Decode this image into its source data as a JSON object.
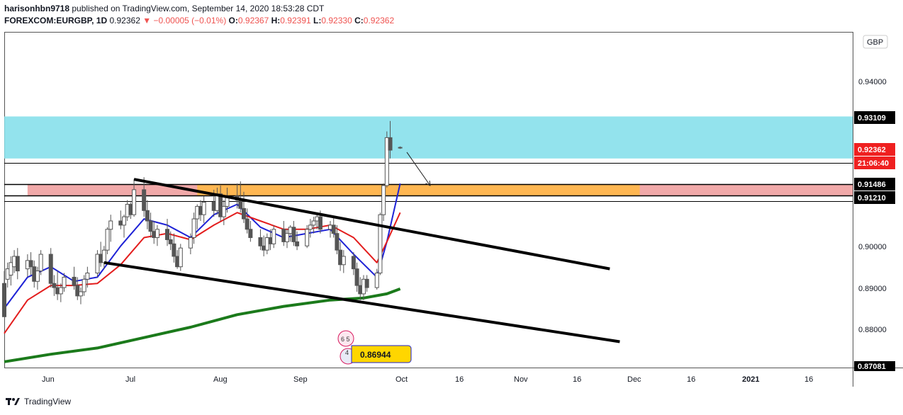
{
  "header": {
    "user": "harisonhbn9718",
    "published": "published on TradingView.com, September 14, 2020 18:53:28 CDT",
    "symbol": "FOREXCOM:EURGBP, 1D",
    "last": "0.92362",
    "change": "−0.00005 (−0.01%)",
    "o_label": "O:",
    "o_value": "0.92367",
    "h_label": "H:",
    "h_value": "0.92391",
    "l_label": "L:",
    "l_value": "0.92330",
    "c_label": "C:",
    "c_value": "0.92362",
    "down_arrow": "▼"
  },
  "price_axis": {
    "currency": "GBP",
    "ticks": [
      "0.94000",
      "0.90000",
      "0.89000",
      "0.88000"
    ],
    "marker_top": "0.93109",
    "marker_price": "0.92362",
    "marker_countdown": "21:06:40",
    "marker_level_1": "0.91486",
    "marker_level_2": "0.91210",
    "marker_bottom": "0.87081"
  },
  "time_axis": {
    "labels": [
      "Jun",
      "Jul",
      "Aug",
      "Sep",
      "Oct",
      "16",
      "Nov",
      "16",
      "Dec",
      "16",
      "2021",
      "16"
    ]
  },
  "chart_labels": {
    "price_bubble": "0.86944",
    "event_1": "6 5",
    "event_2": "4"
  },
  "footer": {
    "brand": "TradingView"
  },
  "colors": {
    "up": "#26a69a",
    "down": "#ef5350",
    "candle": "#555555",
    "supply_zone": "#80deea",
    "demand_zone": "#ef9a9a",
    "overlap_zone": "#ffb74d",
    "ma_fast": "#1e22d6",
    "ma_mid": "#e31d1d",
    "ma_slow": "#1b7a1b"
  },
  "chart_data": {
    "type": "candlestick",
    "symbol": "FOREXCOM:EURGBP",
    "interval": "1D",
    "ylim": [
      0.8708,
      0.9514
    ],
    "x_range": [
      "2020-05-18",
      "2021-01-28"
    ],
    "candles": [
      {
        "d": "2020-05-18",
        "o": 0.891,
        "h": 0.894,
        "l": 0.883,
        "c": 0.883
      },
      {
        "d": "2020-05-19",
        "o": 0.892,
        "h": 0.896,
        "l": 0.89,
        "c": 0.8945
      },
      {
        "d": "2020-05-20",
        "o": 0.893,
        "h": 0.8975,
        "l": 0.8905,
        "c": 0.896
      },
      {
        "d": "2020-05-21",
        "o": 0.895,
        "h": 0.899,
        "l": 0.8935,
        "c": 0.8975
      },
      {
        "d": "2020-05-22",
        "o": 0.8975,
        "h": 0.8995,
        "l": 0.892,
        "c": 0.894
      },
      {
        "d": "2020-05-25",
        "o": 0.8945,
        "h": 0.898,
        "l": 0.8925,
        "c": 0.8965
      },
      {
        "d": "2020-05-26",
        "o": 0.8965,
        "h": 0.8985,
        "l": 0.893,
        "c": 0.895
      },
      {
        "d": "2020-05-27",
        "o": 0.895,
        "h": 0.8965,
        "l": 0.89,
        "c": 0.8915
      },
      {
        "d": "2020-05-28",
        "o": 0.8915,
        "h": 0.895,
        "l": 0.8895,
        "c": 0.894
      },
      {
        "d": "2020-05-29",
        "o": 0.894,
        "h": 0.899,
        "l": 0.893,
        "c": 0.898
      },
      {
        "d": "2020-06-01",
        "o": 0.898,
        "h": 0.8995,
        "l": 0.89,
        "c": 0.891
      },
      {
        "d": "2020-06-02",
        "o": 0.891,
        "h": 0.893,
        "l": 0.888,
        "c": 0.89
      },
      {
        "d": "2020-06-03",
        "o": 0.89,
        "h": 0.894,
        "l": 0.887,
        "c": 0.8885
      },
      {
        "d": "2020-06-04",
        "o": 0.8885,
        "h": 0.891,
        "l": 0.8865,
        "c": 0.89
      },
      {
        "d": "2020-06-05",
        "o": 0.89,
        "h": 0.8935,
        "l": 0.889,
        "c": 0.8925
      },
      {
        "d": "2020-06-08",
        "o": 0.8925,
        "h": 0.895,
        "l": 0.8895,
        "c": 0.8905
      },
      {
        "d": "2020-06-09",
        "o": 0.8905,
        "h": 0.8925,
        "l": 0.887,
        "c": 0.888
      },
      {
        "d": "2020-06-10",
        "o": 0.888,
        "h": 0.89,
        "l": 0.886,
        "c": 0.889
      },
      {
        "d": "2020-06-11",
        "o": 0.889,
        "h": 0.893,
        "l": 0.888,
        "c": 0.892
      },
      {
        "d": "2020-06-12",
        "o": 0.892,
        "h": 0.895,
        "l": 0.89,
        "c": 0.8935
      },
      {
        "d": "2020-06-15",
        "o": 0.8935,
        "h": 0.899,
        "l": 0.8925,
        "c": 0.898
      },
      {
        "d": "2020-06-16",
        "o": 0.898,
        "h": 0.901,
        "l": 0.895,
        "c": 0.896
      },
      {
        "d": "2020-06-17",
        "o": 0.896,
        "h": 0.9,
        "l": 0.8945,
        "c": 0.899
      },
      {
        "d": "2020-06-18",
        "o": 0.899,
        "h": 0.9045,
        "l": 0.898,
        "c": 0.904
      },
      {
        "d": "2020-06-19",
        "o": 0.904,
        "h": 0.9075,
        "l": 0.901,
        "c": 0.906
      },
      {
        "d": "2020-06-22",
        "o": 0.906,
        "h": 0.9085,
        "l": 0.904,
        "c": 0.905
      },
      {
        "d": "2020-06-23",
        "o": 0.905,
        "h": 0.9075,
        "l": 0.902,
        "c": 0.907
      },
      {
        "d": "2020-06-24",
        "o": 0.907,
        "h": 0.911,
        "l": 0.906,
        "c": 0.91
      },
      {
        "d": "2020-06-25",
        "o": 0.91,
        "h": 0.9105,
        "l": 0.9065,
        "c": 0.9075
      },
      {
        "d": "2020-06-26",
        "o": 0.9075,
        "h": 0.916,
        "l": 0.907,
        "c": 0.9135
      },
      {
        "d": "2020-06-29",
        "o": 0.9135,
        "h": 0.9165,
        "l": 0.907,
        "c": 0.9085
      },
      {
        "d": "2020-06-30",
        "o": 0.9085,
        "h": 0.911,
        "l": 0.904,
        "c": 0.906
      },
      {
        "d": "2020-07-01",
        "o": 0.906,
        "h": 0.908,
        "l": 0.902,
        "c": 0.9035
      },
      {
        "d": "2020-07-02",
        "o": 0.9035,
        "h": 0.906,
        "l": 0.9005,
        "c": 0.902
      },
      {
        "d": "2020-07-03",
        "o": 0.902,
        "h": 0.905,
        "l": 0.9,
        "c": 0.904
      },
      {
        "d": "2020-07-06",
        "o": 0.904,
        "h": 0.9065,
        "l": 0.9,
        "c": 0.9015
      },
      {
        "d": "2020-07-07",
        "o": 0.9015,
        "h": 0.9035,
        "l": 0.899,
        "c": 0.9005
      },
      {
        "d": "2020-07-08",
        "o": 0.9005,
        "h": 0.903,
        "l": 0.896,
        "c": 0.8975
      },
      {
        "d": "2020-07-09",
        "o": 0.8975,
        "h": 0.899,
        "l": 0.8945,
        "c": 0.895
      },
      {
        "d": "2020-07-10",
        "o": 0.895,
        "h": 0.9005,
        "l": 0.894,
        "c": 0.8995
      },
      {
        "d": "2020-07-13",
        "o": 0.8995,
        "h": 0.903,
        "l": 0.898,
        "c": 0.902
      },
      {
        "d": "2020-07-14",
        "o": 0.902,
        "h": 0.908,
        "l": 0.9005,
        "c": 0.9065
      },
      {
        "d": "2020-07-15",
        "o": 0.9065,
        "h": 0.91,
        "l": 0.904,
        "c": 0.9095
      },
      {
        "d": "2020-07-16",
        "o": 0.9095,
        "h": 0.911,
        "l": 0.906,
        "c": 0.9075
      },
      {
        "d": "2020-07-17",
        "o": 0.9075,
        "h": 0.912,
        "l": 0.9055,
        "c": 0.9105
      },
      {
        "d": "2020-07-20",
        "o": 0.9105,
        "h": 0.9135,
        "l": 0.907,
        "c": 0.9085
      },
      {
        "d": "2020-07-21",
        "o": 0.9085,
        "h": 0.914,
        "l": 0.9075,
        "c": 0.9125
      },
      {
        "d": "2020-07-22",
        "o": 0.9125,
        "h": 0.9145,
        "l": 0.906,
        "c": 0.907
      },
      {
        "d": "2020-07-23",
        "o": 0.907,
        "h": 0.911,
        "l": 0.905,
        "c": 0.9095
      },
      {
        "d": "2020-07-24",
        "o": 0.9095,
        "h": 0.914,
        "l": 0.908,
        "c": 0.912
      },
      {
        "d": "2020-07-27",
        "o": 0.912,
        "h": 0.915,
        "l": 0.909,
        "c": 0.911
      },
      {
        "d": "2020-07-28",
        "o": 0.911,
        "h": 0.9155,
        "l": 0.908,
        "c": 0.909
      },
      {
        "d": "2020-07-29",
        "o": 0.909,
        "h": 0.913,
        "l": 0.9055,
        "c": 0.9065
      },
      {
        "d": "2020-07-30",
        "o": 0.9065,
        "h": 0.909,
        "l": 0.903,
        "c": 0.904
      },
      {
        "d": "2020-07-31",
        "o": 0.904,
        "h": 0.906,
        "l": 0.901,
        "c": 0.902
      },
      {
        "d": "2020-08-03",
        "o": 0.902,
        "h": 0.904,
        "l": 0.899,
        "c": 0.9
      },
      {
        "d": "2020-08-04",
        "o": 0.9,
        "h": 0.9025,
        "l": 0.8975,
        "c": 0.899
      },
      {
        "d": "2020-08-05",
        "o": 0.899,
        "h": 0.903,
        "l": 0.898,
        "c": 0.902
      },
      {
        "d": "2020-08-06",
        "o": 0.902,
        "h": 0.904,
        "l": 0.899,
        "c": 0.9005
      },
      {
        "d": "2020-08-07",
        "o": 0.9005,
        "h": 0.905,
        "l": 0.8995,
        "c": 0.904
      },
      {
        "d": "2020-08-10",
        "o": 0.904,
        "h": 0.906,
        "l": 0.9,
        "c": 0.901
      },
      {
        "d": "2020-08-11",
        "o": 0.901,
        "h": 0.904,
        "l": 0.8995,
        "c": 0.903
      },
      {
        "d": "2020-08-12",
        "o": 0.903,
        "h": 0.905,
        "l": 0.901,
        "c": 0.9045
      },
      {
        "d": "2020-08-13",
        "o": 0.9045,
        "h": 0.906,
        "l": 0.9,
        "c": 0.901
      },
      {
        "d": "2020-08-14",
        "o": 0.901,
        "h": 0.9035,
        "l": 0.899,
        "c": 0.9
      },
      {
        "d": "2020-08-17",
        "o": 0.9,
        "h": 0.905,
        "l": 0.8995,
        "c": 0.904
      },
      {
        "d": "2020-08-18",
        "o": 0.904,
        "h": 0.9065,
        "l": 0.902,
        "c": 0.905
      },
      {
        "d": "2020-08-19",
        "o": 0.905,
        "h": 0.907,
        "l": 0.903,
        "c": 0.906
      },
      {
        "d": "2020-08-20",
        "o": 0.906,
        "h": 0.908,
        "l": 0.904,
        "c": 0.907
      },
      {
        "d": "2020-08-21",
        "o": 0.907,
        "h": 0.9085,
        "l": 0.903,
        "c": 0.904
      },
      {
        "d": "2020-08-24",
        "o": 0.904,
        "h": 0.906,
        "l": 0.902,
        "c": 0.905
      },
      {
        "d": "2020-08-25",
        "o": 0.905,
        "h": 0.907,
        "l": 0.902,
        "c": 0.903
      },
      {
        "d": "2020-08-26",
        "o": 0.903,
        "h": 0.905,
        "l": 0.898,
        "c": 0.899
      },
      {
        "d": "2020-08-27",
        "o": 0.899,
        "h": 0.901,
        "l": 0.894,
        "c": 0.8955
      },
      {
        "d": "2020-08-28",
        "o": 0.8955,
        "h": 0.899,
        "l": 0.8935,
        "c": 0.8975
      },
      {
        "d": "2020-08-31",
        "o": 0.8975,
        "h": 0.8985,
        "l": 0.893,
        "c": 0.8945
      },
      {
        "d": "2020-09-01",
        "o": 0.8945,
        "h": 0.896,
        "l": 0.889,
        "c": 0.8905
      },
      {
        "d": "2020-09-02",
        "o": 0.8905,
        "h": 0.8925,
        "l": 0.887,
        "c": 0.8885
      },
      {
        "d": "2020-09-03",
        "o": 0.8885,
        "h": 0.893,
        "l": 0.887,
        "c": 0.892
      },
      {
        "d": "2020-09-04",
        "o": 0.892,
        "h": 0.893,
        "l": 0.889,
        "c": 0.89
      },
      {
        "d": "2020-09-07",
        "o": 0.89,
        "h": 0.8945,
        "l": 0.8895,
        "c": 0.8935
      },
      {
        "d": "2020-09-08",
        "o": 0.8935,
        "h": 0.908,
        "l": 0.893,
        "c": 0.9075
      },
      {
        "d": "2020-09-09",
        "o": 0.9075,
        "h": 0.915,
        "l": 0.906,
        "c": 0.9145
      },
      {
        "d": "2020-09-10",
        "o": 0.9145,
        "h": 0.9275,
        "l": 0.914,
        "c": 0.926
      },
      {
        "d": "2020-09-11",
        "o": 0.926,
        "h": 0.93,
        "l": 0.921,
        "c": 0.923
      },
      {
        "d": "2020-09-14",
        "o": 0.92367,
        "h": 0.92391,
        "l": 0.9233,
        "c": 0.92362
      }
    ],
    "moving_averages": [
      {
        "name": "MA fast",
        "color": "#1e22d6",
        "points": [
          [
            "2020-05-18",
            0.885
          ],
          [
            "2020-05-25",
            0.8925
          ],
          [
            "2020-06-01",
            0.895
          ],
          [
            "2020-06-08",
            0.8915
          ],
          [
            "2020-06-15",
            0.8925
          ],
          [
            "2020-06-22",
            0.9
          ],
          [
            "2020-06-29",
            0.9065
          ],
          [
            "2020-07-06",
            0.905
          ],
          [
            "2020-07-13",
            0.902
          ],
          [
            "2020-07-20",
            0.9075
          ],
          [
            "2020-07-27",
            0.91
          ],
          [
            "2020-08-03",
            0.9045
          ],
          [
            "2020-08-10",
            0.902
          ],
          [
            "2020-08-17",
            0.903
          ],
          [
            "2020-08-24",
            0.904
          ],
          [
            "2020-08-31",
            0.898
          ],
          [
            "2020-09-07",
            0.8925
          ],
          [
            "2020-09-10",
            0.901
          ],
          [
            "2020-09-14",
            0.915
          ]
        ]
      },
      {
        "name": "MA mid",
        "color": "#e31d1d",
        "points": [
          [
            "2020-05-18",
            0.879
          ],
          [
            "2020-05-25",
            0.887
          ],
          [
            "2020-06-01",
            0.8905
          ],
          [
            "2020-06-08",
            0.8905
          ],
          [
            "2020-06-15",
            0.891
          ],
          [
            "2020-06-22",
            0.8955
          ],
          [
            "2020-06-29",
            0.902
          ],
          [
            "2020-07-06",
            0.903
          ],
          [
            "2020-07-13",
            0.9015
          ],
          [
            "2020-07-20",
            0.905
          ],
          [
            "2020-07-27",
            0.908
          ],
          [
            "2020-08-03",
            0.906
          ],
          [
            "2020-08-10",
            0.904
          ],
          [
            "2020-08-17",
            0.904
          ],
          [
            "2020-08-24",
            0.905
          ],
          [
            "2020-08-31",
            0.902
          ],
          [
            "2020-09-07",
            0.896
          ],
          [
            "2020-09-10",
            0.901
          ],
          [
            "2020-09-14",
            0.908
          ]
        ]
      },
      {
        "name": "MA slow",
        "color": "#1b7a1b",
        "points": [
          [
            "2020-05-18",
            0.8722
          ],
          [
            "2020-06-01",
            0.874
          ],
          [
            "2020-06-15",
            0.8755
          ],
          [
            "2020-06-29",
            0.878
          ],
          [
            "2020-07-13",
            0.8805
          ],
          [
            "2020-07-27",
            0.8835
          ],
          [
            "2020-08-10",
            0.8855
          ],
          [
            "2020-08-24",
            0.887
          ],
          [
            "2020-09-03",
            0.8875
          ],
          [
            "2020-09-10",
            0.8885
          ],
          [
            "2020-09-14",
            0.8897
          ]
        ]
      }
    ],
    "zones": [
      {
        "kind": "supply",
        "from": "2020-05-18",
        "to": "2021-01-28",
        "top": 0.93109,
        "bottom": 0.921
      },
      {
        "kind": "demand",
        "from": "2020-05-25",
        "to": "2021-01-28",
        "top": 0.91486,
        "bottom": 0.9121
      },
      {
        "kind": "overlap",
        "from": "2020-07-15",
        "to": "2020-11-25",
        "top": 0.91486,
        "bottom": 0.9121
      }
    ],
    "trendlines": [
      {
        "from": [
          "2020-06-26",
          0.916
        ],
        "to": [
          "2020-11-16",
          0.8945
        ]
      },
      {
        "from": [
          "2020-06-17",
          0.896
        ],
        "to": [
          "2020-11-19",
          0.877
        ]
      }
    ],
    "horizontal_lines": [
      0.91486,
      0.9121,
      0.92,
      0.9107
    ],
    "arrow": {
      "from": [
        "2020-09-16",
        0.9225
      ],
      "to": [
        "2020-09-23",
        0.9145
      ]
    }
  }
}
